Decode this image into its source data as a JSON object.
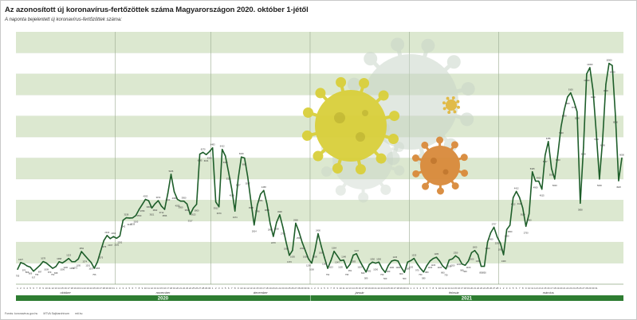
{
  "header": {
    "title": "Az azonosított új koronavírus-fertőzöttek száma Magyarországon 2020. október 1-jétől",
    "subtitle": "A naponta bejelentett új koronavírus-fertőzöttek száma:"
  },
  "footer": {
    "source": "Forrás: koronavirus.gov.hu",
    "agency": "MTVA Sajtóarchívum",
    "site": "mti.hu"
  },
  "colors": {
    "line": "#1e5e2a",
    "band_dark": "#dce8d0",
    "band_light": "#ffffff",
    "axis_bar": "#2e7d32",
    "virus_yellow": "#d9cf3a",
    "virus_orange": "#d98a3a",
    "virus_gray": "#c7d3c7"
  },
  "chart_data": {
    "type": "line",
    "title": "Az azonosított új koronavírus-fertőzöttek száma Magyarországon 2020. október 1-jétől",
    "subtitle": "A naponta bejelentett új koronavírus-fertőzöttek száma:",
    "ylim": [
      0,
      12000
    ],
    "grid": true,
    "months": [
      "október",
      "november",
      "december",
      "január",
      "február",
      "március"
    ],
    "month_lengths": [
      31,
      30,
      31,
      31,
      28,
      31
    ],
    "years": [
      "2020",
      "2021"
    ],
    "series": [
      {
        "values": [
          705,
          1027,
          970,
          866,
          809,
          617,
          756,
          897,
          1078,
          1009,
          879,
          753,
          838,
          1068,
          1006,
          1106,
          1223,
          1069,
          1072,
          1195,
          1552,
          1374,
          1201,
          1037,
          756,
          1065,
          1575,
          2076,
          2316,
          2167,
          2264,
          2182,
          2292,
          3042,
          3158,
          3144,
          3155,
          3265,
          3550,
          3789,
          4033,
          3969,
          3621,
          3822,
          3972,
          3712,
          3556,
          4312,
          5226,
          4398,
          4035,
          3950,
          3950,
          3815,
          3317,
          3623,
          3800,
          6185,
          6270,
          6161,
          6300,
          6483,
          3912,
          3679,
          6412,
          6100,
          5325,
          4519,
          3474,
          5007,
          6049,
          6001,
          5097,
          3928,
          2814,
          3766,
          4281,
          4458,
          3815,
          2888,
          2270,
          2938,
          3300,
          2700,
          1996,
          1370,
          1605,
          2900,
          2500,
          2000,
          1600,
          1200,
          1000,
          1600,
          2400,
          1800,
          1262,
          754,
          1113,
          1564,
          1347,
          1120,
          1148,
          755,
          951,
          1383,
          1447,
          1119,
          840,
          580,
          932,
          1050,
          1000,
          1050,
          750,
          560,
          900,
          1100,
          1145,
          1100,
          800,
          560,
          1050,
          1120,
          1225,
          970,
          750,
          580,
          880,
          1100,
          1220,
          1280,
          1100,
          860,
          730,
          1150,
          1200,
          1350,
          1240,
          960,
          900,
          1100,
          1500,
          1600,
          1400,
          850,
          850,
          2003,
          2450,
          2707,
          2250,
          1950,
          1400,
          2600,
          2800,
          4112,
          4412,
          4120,
          3624,
          2750,
          3350,
          5345,
          4900,
          4900,
          4515,
          6127,
          6785,
          5500,
          5000,
          6200,
          7500,
          8300,
          8900,
          9100,
          8700,
          8200,
          3850,
          6500,
          10000,
          10300,
          9200,
          7200,
          5000,
          6900,
          9500,
          10500,
          10400,
          8000,
          4920,
          6000
        ]
      }
    ]
  }
}
